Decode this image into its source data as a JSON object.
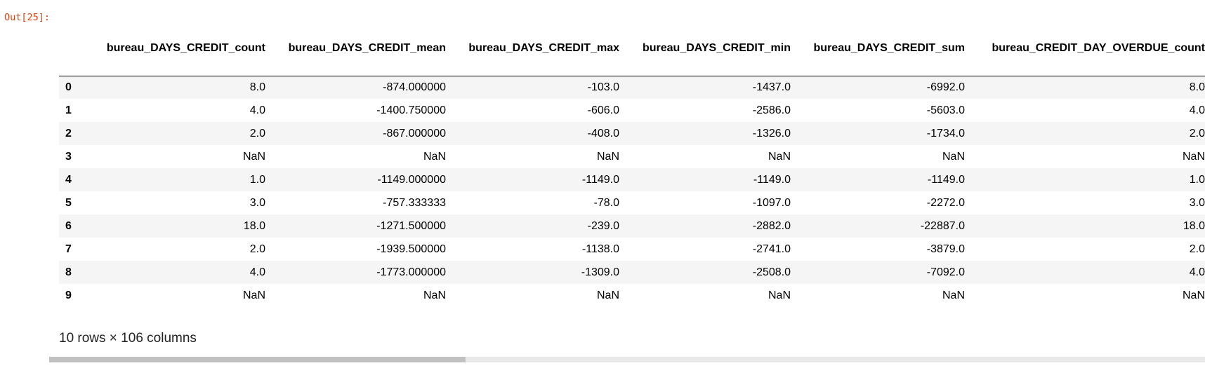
{
  "prompt": "Out[25]:",
  "table": {
    "columns": [
      "bureau_DAYS_CREDIT_count",
      "bureau_DAYS_CREDIT_mean",
      "bureau_DAYS_CREDIT_max",
      "bureau_DAYS_CREDIT_min",
      "bureau_DAYS_CREDIT_sum",
      "bureau_CREDIT_DAY_OVERDUE_count"
    ],
    "rows": [
      {
        "index": "0",
        "cells": [
          "8.0",
          "-874.000000",
          "-103.0",
          "-1437.0",
          "-6992.0",
          "8.0"
        ]
      },
      {
        "index": "1",
        "cells": [
          "4.0",
          "-1400.750000",
          "-606.0",
          "-2586.0",
          "-5603.0",
          "4.0"
        ]
      },
      {
        "index": "2",
        "cells": [
          "2.0",
          "-867.000000",
          "-408.0",
          "-1326.0",
          "-1734.0",
          "2.0"
        ]
      },
      {
        "index": "3",
        "cells": [
          "NaN",
          "NaN",
          "NaN",
          "NaN",
          "NaN",
          "NaN"
        ]
      },
      {
        "index": "4",
        "cells": [
          "1.0",
          "-1149.000000",
          "-1149.0",
          "-1149.0",
          "-1149.0",
          "1.0"
        ]
      },
      {
        "index": "5",
        "cells": [
          "3.0",
          "-757.333333",
          "-78.0",
          "-1097.0",
          "-2272.0",
          "3.0"
        ]
      },
      {
        "index": "6",
        "cells": [
          "18.0",
          "-1271.500000",
          "-239.0",
          "-2882.0",
          "-22887.0",
          "18.0"
        ]
      },
      {
        "index": "7",
        "cells": [
          "2.0",
          "-1939.500000",
          "-1138.0",
          "-2741.0",
          "-3879.0",
          "2.0"
        ]
      },
      {
        "index": "8",
        "cells": [
          "4.0",
          "-1773.000000",
          "-1309.0",
          "-2508.0",
          "-7092.0",
          "4.0"
        ]
      },
      {
        "index": "9",
        "cells": [
          "NaN",
          "NaN",
          "NaN",
          "NaN",
          "NaN",
          "NaN"
        ]
      }
    ]
  },
  "shape_text": "10 rows × 106 columns",
  "scrollbar": {
    "position_fraction": 0.0,
    "visible_fraction": 0.36
  }
}
